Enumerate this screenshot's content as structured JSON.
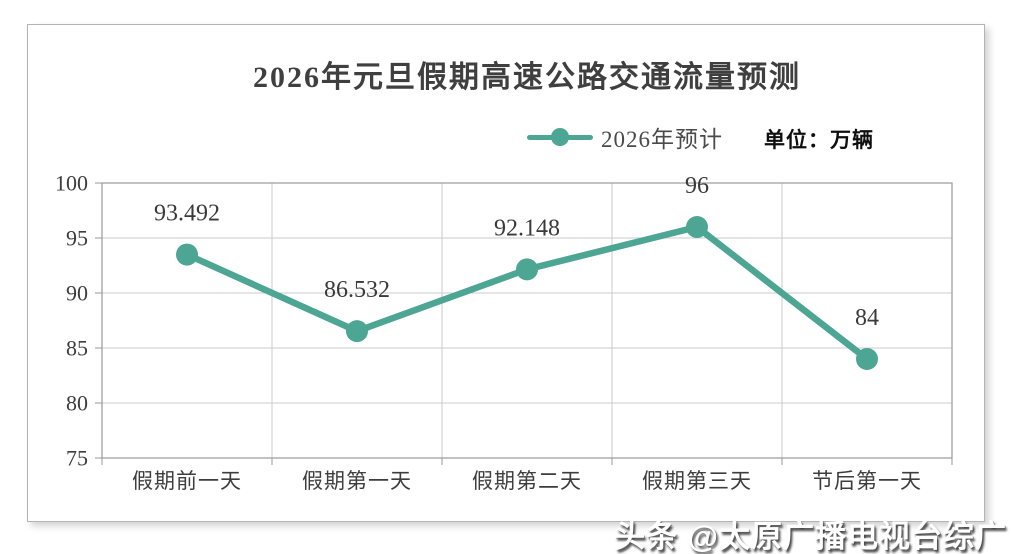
{
  "title": "2026年元旦假期高速公路交通流量预测",
  "legend": {
    "series_label": "2026年预计",
    "unit_label": "单位：万辆"
  },
  "watermark": "头条 @太原广播电视台综广",
  "colors": {
    "series": "#4da593",
    "grid": "#cbcbcb",
    "axis_border": "#9a9a9a",
    "tick": "#9a9a9a",
    "axis_text": "#3d3d3d",
    "point_label_text": "#3a3a3a"
  },
  "chart_data": {
    "type": "line",
    "title": "2026年元旦假期高速公路交通流量预测",
    "unit": "万辆",
    "categories": [
      "假期前一天",
      "假期第一天",
      "假期第二天",
      "假期第三天",
      "节后第一天"
    ],
    "series": [
      {
        "name": "2026年预计",
        "values": [
          93.492,
          86.532,
          92.148,
          96,
          84
        ],
        "point_labels": [
          "93.492",
          "86.532",
          "92.148",
          "96",
          "84"
        ]
      }
    ],
    "xlabel": "",
    "ylabel": "",
    "ylim": [
      75,
      100
    ],
    "yticks": [
      100,
      95,
      90,
      85,
      80,
      75
    ],
    "grid": true,
    "legend_position": "top-center",
    "marker": "circle"
  }
}
